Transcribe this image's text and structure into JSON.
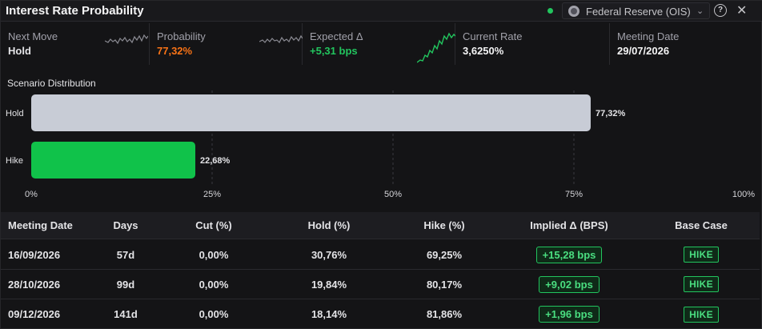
{
  "header": {
    "title": "Interest Rate Probability",
    "source": "Federal Reserve (OIS)",
    "status_color": "#22c55e",
    "icons": [
      "status-dot-icon",
      "fed-seal-icon",
      "chevron-down-icon",
      "help-icon",
      "close-icon"
    ]
  },
  "metrics": [
    {
      "label": "Next Move",
      "value": "Hold",
      "value_color": "#f4f4f5",
      "sparkline": "gray"
    },
    {
      "label": "Probability",
      "value": "77,32%",
      "value_color": "#f97316",
      "sparkline": "gray"
    },
    {
      "label": "Expected Δ",
      "value": "+5,31 bps",
      "value_color": "#22c55e",
      "sparkline": "green"
    },
    {
      "label": "Current Rate",
      "value": "3,6250%",
      "value_color": "#f4f4f5"
    },
    {
      "label": "Meeting Date",
      "value": "29/07/2026",
      "value_color": "#f4f4f5"
    }
  ],
  "chart_data": {
    "type": "bar",
    "orientation": "horizontal",
    "title": "Scenario Distribution",
    "categories": [
      "Hold",
      "Hike"
    ],
    "values": [
      77.32,
      22.68
    ],
    "value_labels": [
      "77,32%",
      "22,68%"
    ],
    "colors": [
      "#c8ccd6",
      "#10c24a"
    ],
    "xlim": [
      0,
      100
    ],
    "x_ticks": [
      "0%",
      "25%",
      "50%",
      "75%",
      "100%"
    ],
    "grid": true
  },
  "table": {
    "columns": [
      "Meeting Date",
      "Days",
      "Cut (%)",
      "Hold (%)",
      "Hike (%)",
      "Implied Δ (BPS)",
      "Base Case"
    ],
    "rows": [
      {
        "date": "16/09/2026",
        "days": "57d",
        "cut": "0,00%",
        "hold": "30,76%",
        "hike": "69,25%",
        "implied": "+15,28 bps",
        "base": "HIKE"
      },
      {
        "date": "28/10/2026",
        "days": "99d",
        "cut": "0,00%",
        "hold": "19,84%",
        "hike": "80,17%",
        "implied": "+9,02 bps",
        "base": "HIKE"
      },
      {
        "date": "09/12/2026",
        "days": "141d",
        "cut": "0,00%",
        "hold": "18,14%",
        "hike": "81,86%",
        "implied": "+1,96 bps",
        "base": "HIKE"
      }
    ]
  }
}
